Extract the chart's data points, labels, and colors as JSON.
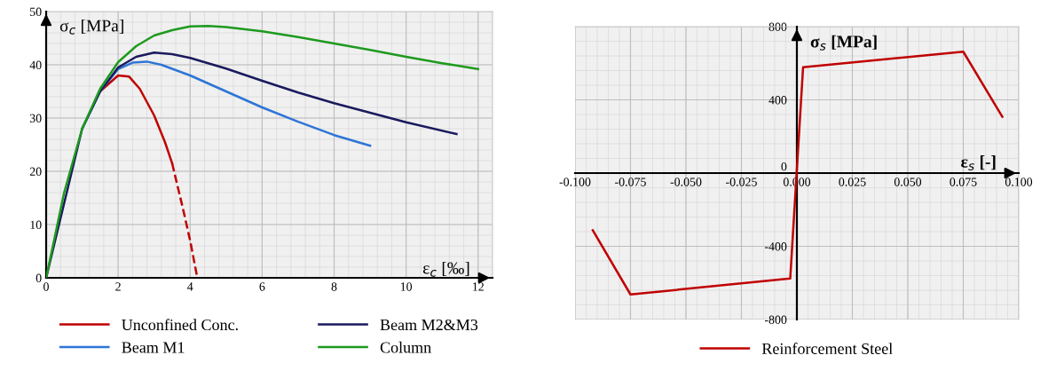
{
  "chart_data": [
    {
      "type": "line",
      "xlabel": "ε$_{c}$ [‰]",
      "ylabel": "σ$_{c}$ [MPa]",
      "xlim": [
        0,
        12.4
      ],
      "ylim": [
        0,
        50
      ],
      "xticks": [
        0,
        2,
        4,
        6,
        8,
        10,
        12
      ],
      "yticks": [
        0,
        10,
        20,
        30,
        40,
        50
      ],
      "grid": true,
      "legend": "bottom",
      "marker": "none",
      "series": [
        {
          "name": "Unconfined Conc.",
          "color": "#c00000",
          "line_style": "solid",
          "x": [
            1.5,
            2,
            2.3,
            2.6,
            3,
            3.3,
            3.5
          ],
          "values": [
            35,
            38,
            37.8,
            35.5,
            30.5,
            25.5,
            21.5
          ]
        },
        {
          "color": "#c00000",
          "line_style": "dashed",
          "x": [
            3.5,
            3.8,
            4,
            4.2
          ],
          "values": [
            21.5,
            13,
            7,
            0
          ]
        },
        {
          "name": "Beam M1",
          "color": "#2e75d6",
          "line_style": "solid",
          "x": [
            1,
            1.5,
            2,
            2.4,
            2.8,
            3.2,
            4,
            5,
            6,
            7,
            8,
            9
          ],
          "values": [
            28,
            35,
            39.2,
            40.4,
            40.6,
            40,
            38,
            35,
            32,
            29.3,
            26.8,
            24.8
          ]
        },
        {
          "name": "Beam M2&M3",
          "color": "#1a1a5e",
          "line_style": "solid",
          "x": [
            0,
            1,
            1.5,
            2,
            2.5,
            3,
            3.5,
            4,
            5,
            6,
            7,
            8,
            9,
            10,
            11.4
          ],
          "values": [
            0,
            28,
            35,
            39.5,
            41.5,
            42.3,
            42,
            41.3,
            39.3,
            37,
            34.8,
            32.8,
            31,
            29.2,
            27
          ]
        },
        {
          "name": "Column",
          "color": "#1e9a1e",
          "line_style": "solid",
          "x": [
            0,
            0.5,
            1,
            1.5,
            2,
            2.5,
            3,
            3.5,
            4,
            4.5,
            5,
            6,
            7,
            8,
            9,
            10,
            11,
            12
          ],
          "values": [
            0,
            16,
            28,
            35.5,
            40.5,
            43.5,
            45.5,
            46.5,
            47.2,
            47.3,
            47.1,
            46.3,
            45.2,
            44,
            42.8,
            41.5,
            40.3,
            39.2
          ]
        }
      ]
    },
    {
      "type": "line",
      "xlabel": "ε$_{s}$ [-]",
      "ylabel": "σ$_{s}$ [MPa]",
      "xlim": [
        -0.1,
        0.1
      ],
      "ylim": [
        -800,
        800
      ],
      "xticks": [
        {
          "value": -0.1,
          "label": "-0.100"
        },
        {
          "value": -0.075,
          "label": "-0.075"
        },
        {
          "value": -0.05,
          "label": "-0.050"
        },
        {
          "value": -0.025,
          "label": "-0.025"
        },
        {
          "value": 0,
          "label": "0.000"
        },
        {
          "value": 0.025,
          "label": "0.025"
        },
        {
          "value": 0.05,
          "label": "0.050"
        },
        {
          "value": 0.075,
          "label": "0.075"
        },
        {
          "value": 0.1,
          "label": "0.100"
        }
      ],
      "yticks": [
        {
          "value": -800,
          "label": "-800"
        },
        {
          "value": -400,
          "label": "-400"
        },
        0,
        400,
        800
      ],
      "grid": true,
      "legend": "bottom",
      "marker": "none",
      "series": [
        {
          "name": "Reinforcement Steel",
          "color": "#c00000",
          "line_style": "solid",
          "x": [
            -0.092,
            -0.075,
            -0.003,
            0.0028,
            0.075,
            0.0926
          ],
          "values": [
            -312,
            -663,
            -576,
            578,
            663,
            308
          ]
        }
      ]
    }
  ]
}
